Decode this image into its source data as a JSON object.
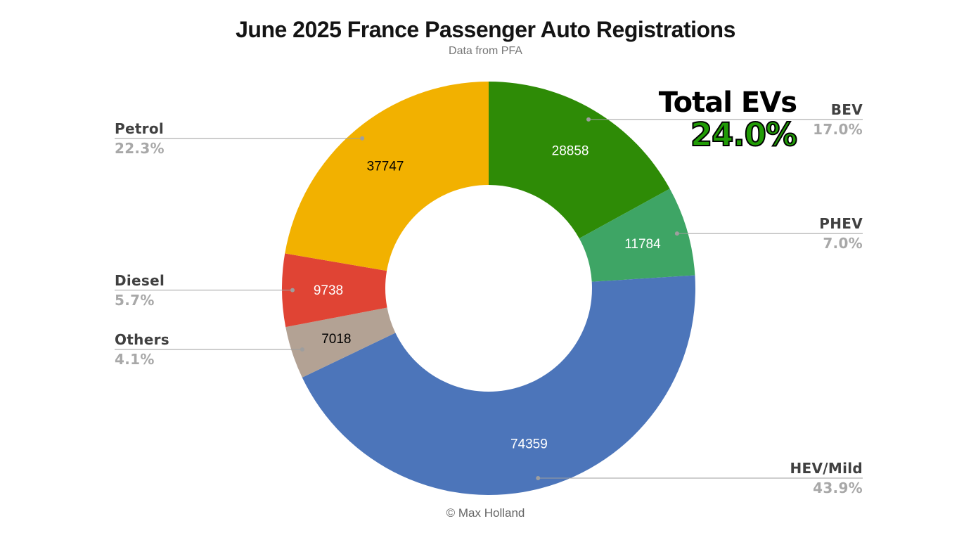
{
  "footer": {
    "credit": "© Max Holland"
  },
  "total_evs": {
    "label": "Total EVs",
    "value": "24.0%",
    "color": "#219c06"
  },
  "chart_data": {
    "type": "pie",
    "subtype": "donut",
    "title": "June 2025 France Passenger Auto Registrations",
    "subtitle": "Data from PFA",
    "start_angle_deg": 0,
    "direction": "clockwise",
    "donut_hole_ratio": 0.5,
    "value_labels": "inside",
    "category_labels": "outside-with-leader-lines",
    "leader_line_color": "#9e9e9e",
    "slices": [
      {
        "label": "BEV",
        "value": 28858,
        "pct": 17.0,
        "percent_label": "17.0%",
        "color": "#2e8b06",
        "value_color": "#ffffff"
      },
      {
        "label": "PHEV",
        "value": 11784,
        "pct": 7.0,
        "percent_label": "7.0%",
        "color": "#3ea565",
        "value_color": "#ffffff"
      },
      {
        "label": "HEV/Mild",
        "value": 74359,
        "pct": 43.9,
        "percent_label": "43.9%",
        "color": "#4c75ba",
        "value_color": "#ffffff"
      },
      {
        "label": "Others",
        "value": 7018,
        "pct": 4.1,
        "percent_label": "4.1%",
        "color": "#b3a294",
        "value_color": "#000000"
      },
      {
        "label": "Diesel",
        "value": 9738,
        "pct": 5.7,
        "percent_label": "5.7%",
        "color": "#e04434",
        "value_color": "#ffffff"
      },
      {
        "label": "Petrol",
        "value": 37747,
        "pct": 22.3,
        "percent_label": "22.3%",
        "color": "#f2b100",
        "value_color": "#000000"
      }
    ]
  }
}
